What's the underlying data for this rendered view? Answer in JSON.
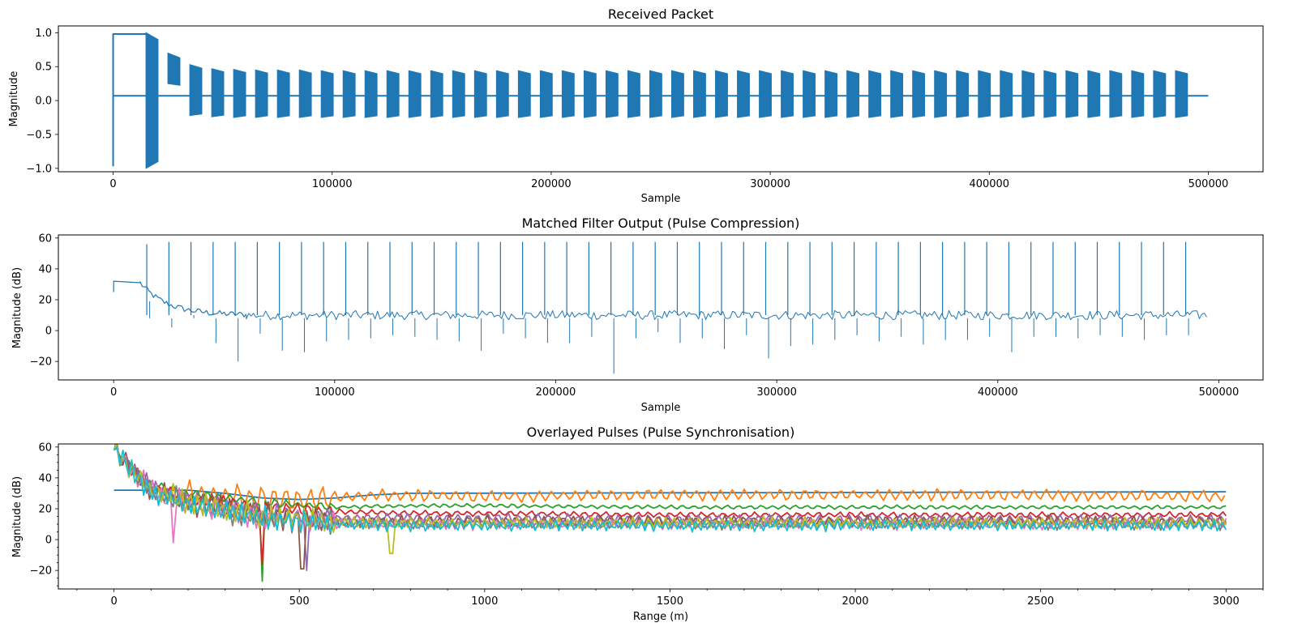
{
  "chart_data": [
    {
      "type": "line",
      "title": "Received Packet",
      "xlabel": "Sample",
      "ylabel": "Magnitude",
      "xlim": [
        -25000,
        525000
      ],
      "ylim": [
        -1.05,
        1.1
      ],
      "xticks": [
        0,
        100000,
        200000,
        300000,
        400000,
        500000
      ],
      "xtick_labels": [
        "0",
        "100000",
        "200000",
        "300000",
        "400000",
        "500000"
      ],
      "yticks": [
        -1.0,
        -0.5,
        0.0,
        0.5,
        1.0
      ],
      "ytick_labels": [
        "−1.0",
        "−0.5",
        "0.0",
        "0.5",
        "1.0"
      ],
      "grid": false,
      "series": [
        {
          "color": "#1f77b4",
          "description_values": {
            "x_range": [
              0,
              500000
            ],
            "baseline": 0.07,
            "initial_level_segment": {
              "x": [
                0,
                15000
              ],
              "y": 0.98
            },
            "burst_period": 10000,
            "burst_count": 48,
            "burst_upper_envelope": [
              1.0,
              0.7,
              0.53,
              0.47,
              0.46,
              0.45,
              0.45,
              0.45,
              0.44,
              0.44,
              0.44,
              0.44,
              0.44,
              0.44,
              0.44,
              0.44,
              0.44,
              0.44,
              0.44,
              0.44,
              0.44,
              0.44,
              0.44,
              0.44,
              0.44,
              0.44,
              0.44,
              0.44,
              0.44,
              0.44,
              0.44,
              0.44,
              0.44,
              0.44,
              0.44,
              0.44,
              0.44,
              0.44,
              0.44,
              0.44,
              0.44,
              0.44,
              0.44,
              0.44,
              0.44,
              0.44,
              0.44,
              0.44
            ],
            "burst_lower_envelope": [
              -1.0,
              0.25,
              -0.22,
              -0.24,
              -0.25,
              -0.25,
              -0.25,
              -0.25,
              -0.25,
              -0.25,
              -0.25,
              -0.25,
              -0.25,
              -0.25,
              -0.25,
              -0.25,
              -0.25,
              -0.25,
              -0.25,
              -0.25,
              -0.25,
              -0.25,
              -0.25,
              -0.25,
              -0.25,
              -0.25,
              -0.25,
              -0.25,
              -0.25,
              -0.25,
              -0.25,
              -0.25,
              -0.25,
              -0.25,
              -0.25,
              -0.25,
              -0.25,
              -0.25,
              -0.25,
              -0.25,
              -0.25,
              -0.25,
              -0.25,
              -0.25,
              -0.25,
              -0.25,
              -0.25,
              -0.25
            ],
            "min_value": -0.97
          }
        }
      ]
    },
    {
      "type": "line",
      "title": "Matched Filter Output (Pulse Compression)",
      "xlabel": "Sample",
      "ylabel": "Magnitude (dB)",
      "xlim": [
        -25000,
        520000
      ],
      "ylim": [
        -32,
        62
      ],
      "xticks": [
        0,
        100000,
        200000,
        300000,
        400000,
        500000
      ],
      "xtick_labels": [
        "0",
        "100000",
        "200000",
        "300000",
        "400000",
        "500000"
      ],
      "yticks": [
        -20,
        0,
        20,
        40,
        60
      ],
      "ytick_labels": [
        "−20",
        "0",
        "20",
        "40",
        "60"
      ],
      "grid": false,
      "series": [
        {
          "color": "#1f77b4",
          "description_values": {
            "x_range": [
              0,
              495000
            ],
            "initial_level": 31,
            "noise_floor": 10,
            "noise_spread": 3,
            "peak_positions": [
              15000,
              25000,
              35000,
              45000,
              55000,
              65000,
              75000,
              85000,
              95000,
              105000,
              115000,
              125000,
              135000,
              145000,
              155000,
              165000,
              175000,
              185000,
              195000,
              205000,
              215000,
              225000,
              235000,
              245000,
              255000,
              265000,
              275000,
              285000,
              295000,
              305000,
              315000,
              325000,
              335000,
              345000,
              355000,
              365000,
              375000,
              385000,
              395000,
              405000,
              415000,
              425000,
              435000,
              445000,
              455000,
              465000,
              475000,
              485000
            ],
            "peak_heights": [
              56,
              57.5,
              57.5,
              57.5,
              57.5,
              57.5,
              57.5,
              57.5,
              57.5,
              57.5,
              57.5,
              57.5,
              57.5,
              57.5,
              57.5,
              57.5,
              57.5,
              57.5,
              57.5,
              57.5,
              57.5,
              57.5,
              57.5,
              57.5,
              57.5,
              57.5,
              57.5,
              57.5,
              57.5,
              57.5,
              57.5,
              57.5,
              57.5,
              57.5,
              57.5,
              57.5,
              57.5,
              57.5,
              57.5,
              57.5,
              57.5,
              57.5,
              57.5,
              57.5,
              57.5,
              57.5,
              57.5,
              57.5
            ],
            "dip_depths": [
              19,
              2,
              10,
              -8,
              -20,
              -2,
              -13,
              -14,
              -7,
              -6,
              -5,
              -3,
              -4,
              -6,
              -7,
              -13,
              -2,
              -5,
              -8,
              -8,
              -4,
              -28,
              -5,
              -1,
              -8,
              -5,
              -12,
              -3,
              -18,
              -10,
              -9,
              -6,
              -3,
              -7,
              -4,
              -9,
              -6,
              -6,
              -4,
              -14,
              -4,
              -4,
              -5,
              -3,
              -4,
              -6,
              -3,
              -3
            ]
          }
        }
      ]
    },
    {
      "type": "line",
      "title": "Overlayed Pulses (Pulse Synchronisation)",
      "xlabel": "Range (m)",
      "ylabel": "Magnitude (dB)",
      "xlim": [
        -150,
        3100
      ],
      "ylim": [
        -32,
        62
      ],
      "xticks": [
        0,
        500,
        1000,
        1500,
        2000,
        2500,
        3000
      ],
      "xtick_labels": [
        "0",
        "500",
        "1000",
        "1500",
        "2000",
        "2500",
        "3000"
      ],
      "yticks": [
        -20,
        0,
        20,
        40,
        60
      ],
      "ytick_labels": [
        "−20",
        "0",
        "20",
        "40",
        "60"
      ],
      "minor_ticks": true,
      "grid": false,
      "series": [
        {
          "color": "#1f77b4",
          "points": [
            [
              0,
              32
            ],
            [
              200,
              32
            ],
            [
              300,
              30
            ],
            [
              400,
              27
            ],
            [
              500,
              26
            ],
            [
              600,
              27
            ],
            [
              700,
              29
            ],
            [
              800,
              30
            ],
            [
              3000,
              31
            ]
          ]
        },
        {
          "color": "#ff7f0e",
          "points": [
            [
              180,
              30
            ],
            [
              300,
              28
            ],
            [
              500,
              25
            ],
            [
              700,
              29
            ],
            [
              1000,
              28
            ],
            [
              1500,
              29
            ],
            [
              2000,
              29
            ],
            [
              2500,
              29
            ],
            [
              3000,
              28
            ]
          ],
          "ripple": 3
        },
        {
          "color": "#2ca02c",
          "points": [
            [
              0,
              58
            ],
            [
              100,
              36
            ],
            [
              200,
              30
            ],
            [
              300,
              27
            ],
            [
              400,
              24
            ],
            [
              600,
              21
            ],
            [
              800,
              22
            ],
            [
              1000,
              22
            ],
            [
              1500,
              21
            ],
            [
              3000,
              21
            ]
          ],
          "ripple": 1,
          "dip": [
            400,
            -27
          ]
        },
        {
          "color": "#d62728",
          "points": [
            [
              0,
              58
            ],
            [
              100,
              33
            ],
            [
              200,
              27
            ],
            [
              400,
              21
            ],
            [
              600,
              18
            ],
            [
              800,
              17
            ],
            [
              1000,
              17
            ],
            [
              1500,
              16
            ],
            [
              2000,
              16
            ],
            [
              3000,
              16
            ]
          ],
          "ripple": 1.5,
          "dip": [
            400,
            -16
          ]
        },
        {
          "color": "#9467bd",
          "points": [
            [
              0,
              58
            ],
            [
              100,
              33
            ],
            [
              200,
              25
            ],
            [
              400,
              17
            ],
            [
              600,
              14
            ],
            [
              800,
              14
            ],
            [
              1000,
              14
            ],
            [
              1500,
              13
            ],
            [
              2000,
              13
            ],
            [
              3000,
              13
            ]
          ],
          "ripple": 2.5,
          "dip": [
            520,
            -20
          ]
        },
        {
          "color": "#8c564b",
          "points": [
            [
              0,
              58
            ],
            [
              100,
              32
            ],
            [
              200,
              24
            ],
            [
              400,
              16
            ],
            [
              600,
              12
            ],
            [
              800,
              12
            ],
            [
              1500,
              12
            ],
            [
              3000,
              12
            ]
          ],
          "ripple": 3,
          "dip": [
            510,
            -19
          ]
        },
        {
          "color": "#e377c2",
          "points": [
            [
              0,
              58
            ],
            [
              100,
              31
            ],
            [
              200,
              23
            ],
            [
              400,
              14
            ],
            [
              600,
              10
            ],
            [
              800,
              10
            ],
            [
              1500,
              10
            ],
            [
              3000,
              10
            ]
          ],
          "ripple": 3,
          "dip": [
            160,
            -2
          ]
        },
        {
          "color": "#7f7f7f",
          "points": [
            [
              0,
              58
            ],
            [
              100,
              31
            ],
            [
              200,
              23
            ],
            [
              400,
              14
            ],
            [
              600,
              11
            ],
            [
              800,
              10
            ],
            [
              1500,
              10
            ],
            [
              3000,
              10
            ]
          ],
          "ripple": 3
        },
        {
          "color": "#bcbd22",
          "points": [
            [
              0,
              58
            ],
            [
              100,
              32
            ],
            [
              200,
              24
            ],
            [
              400,
              15
            ],
            [
              600,
              12
            ],
            [
              800,
              11
            ],
            [
              1500,
              11
            ],
            [
              3000,
              11
            ]
          ],
          "ripple": 3,
          "dip": [
            750,
            -9
          ]
        },
        {
          "color": "#17becf",
          "points": [
            [
              0,
              58
            ],
            [
              100,
              31
            ],
            [
              200,
              23
            ],
            [
              400,
              14
            ],
            [
              600,
              10
            ],
            [
              800,
              9
            ],
            [
              1500,
              9
            ],
            [
              3000,
              9
            ]
          ],
          "ripple": 3
        }
      ]
    }
  ]
}
